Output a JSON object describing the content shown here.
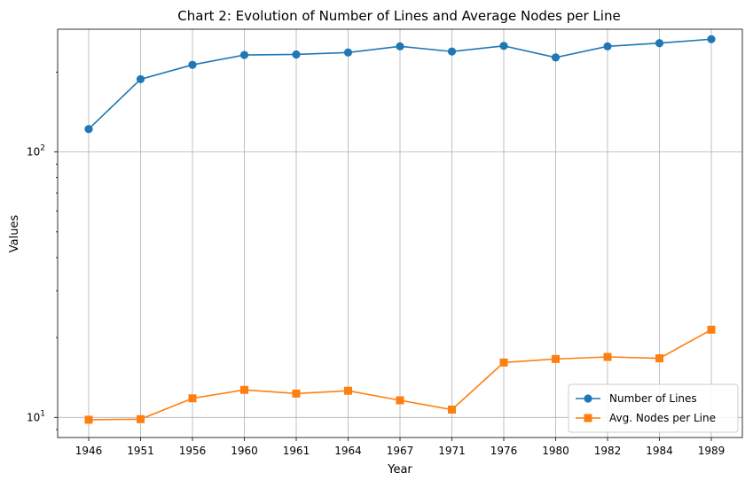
{
  "chart_data": {
    "type": "line",
    "title": "Chart 2: Evolution of Number of Lines and Average Nodes per Line",
    "xlabel": "Year",
    "ylabel": "Values",
    "categories": [
      "1946",
      "1951",
      "1956",
      "1960",
      "1961",
      "1964",
      "1967",
      "1971",
      "1976",
      "1980",
      "1982",
      "1984",
      "1989"
    ],
    "y_scale": "log",
    "ylim": [
      8.4,
      290
    ],
    "y_ticks": [
      10,
      100
    ],
    "y_tick_labels": [
      "10^1",
      "10^2"
    ],
    "grid": true,
    "legend_position": "lower right",
    "series": [
      {
        "name": "Number of Lines",
        "color": "#1f77b4",
        "marker": "circle",
        "values": [
          122,
          188,
          213,
          232,
          233,
          237,
          250,
          239,
          251,
          227,
          250,
          257,
          266
        ]
      },
      {
        "name": "Avg. Nodes per Line",
        "color": "#ff7f0e",
        "marker": "square",
        "values": [
          9.8,
          9.85,
          11.8,
          12.7,
          12.3,
          12.6,
          11.6,
          10.7,
          16.1,
          16.6,
          16.9,
          16.7,
          21.4
        ]
      }
    ]
  }
}
